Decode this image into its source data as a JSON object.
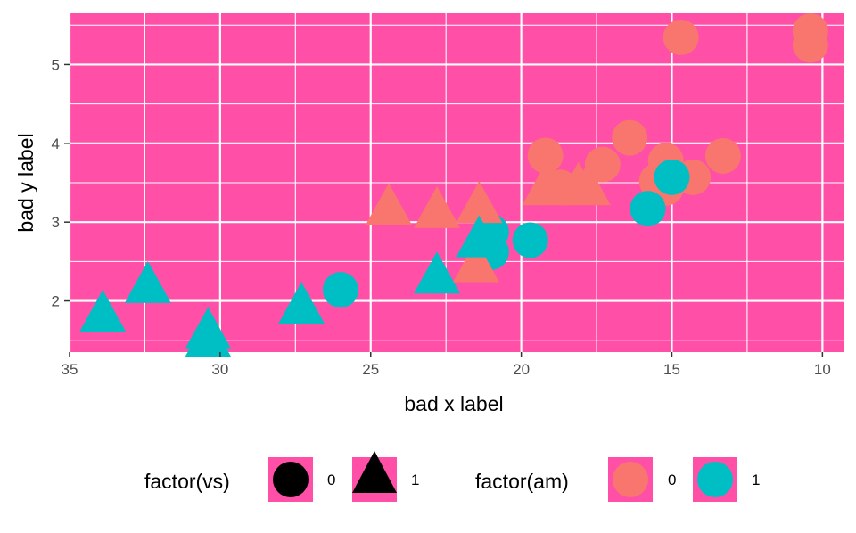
{
  "chart_data": {
    "type": "scatter",
    "xlabel": "bad x label",
    "ylabel": "bad y label",
    "x_reversed": true,
    "xlim": [
      35,
      9.3
    ],
    "ylim": [
      1.35,
      5.65
    ],
    "x_ticks": [
      35,
      30,
      25,
      20,
      15,
      10
    ],
    "y_ticks": [
      2,
      3,
      4,
      5
    ],
    "grid": true,
    "panel_background": "#FF4FA7",
    "legend_position": "bottom",
    "legends": [
      {
        "title": "factor(vs)",
        "entries": [
          {
            "label": "0",
            "shape": "circle"
          },
          {
            "label": "1",
            "shape": "triangle"
          }
        ]
      },
      {
        "title": "factor(am)",
        "entries": [
          {
            "label": "0",
            "color": "#F8766D"
          },
          {
            "label": "1",
            "color": "#00BFC4"
          }
        ]
      }
    ],
    "colors": {
      "am0": "#F8766D",
      "am1": "#00BFC4"
    },
    "points": [
      {
        "x": 21.0,
        "y": 2.62,
        "vs": "0",
        "am": "1"
      },
      {
        "x": 21.0,
        "y": 2.875,
        "vs": "0",
        "am": "1"
      },
      {
        "x": 22.8,
        "y": 2.32,
        "vs": "1",
        "am": "1"
      },
      {
        "x": 21.4,
        "y": 3.215,
        "vs": "1",
        "am": "0"
      },
      {
        "x": 18.7,
        "y": 3.44,
        "vs": "0",
        "am": "0"
      },
      {
        "x": 18.1,
        "y": 3.46,
        "vs": "1",
        "am": "0"
      },
      {
        "x": 14.3,
        "y": 3.57,
        "vs": "0",
        "am": "0"
      },
      {
        "x": 24.4,
        "y": 3.19,
        "vs": "1",
        "am": "0"
      },
      {
        "x": 22.8,
        "y": 3.15,
        "vs": "1",
        "am": "0"
      },
      {
        "x": 19.2,
        "y": 3.44,
        "vs": "1",
        "am": "0"
      },
      {
        "x": 17.8,
        "y": 3.44,
        "vs": "1",
        "am": "0"
      },
      {
        "x": 16.4,
        "y": 4.07,
        "vs": "0",
        "am": "0"
      },
      {
        "x": 17.3,
        "y": 3.73,
        "vs": "0",
        "am": "0"
      },
      {
        "x": 15.2,
        "y": 3.78,
        "vs": "0",
        "am": "0"
      },
      {
        "x": 10.4,
        "y": 5.25,
        "vs": "0",
        "am": "0"
      },
      {
        "x": 10.4,
        "y": 5.424,
        "vs": "0",
        "am": "0"
      },
      {
        "x": 14.7,
        "y": 5.345,
        "vs": "0",
        "am": "0"
      },
      {
        "x": 32.4,
        "y": 2.2,
        "vs": "1",
        "am": "1"
      },
      {
        "x": 30.4,
        "y": 1.615,
        "vs": "1",
        "am": "1"
      },
      {
        "x": 33.9,
        "y": 1.835,
        "vs": "1",
        "am": "1"
      },
      {
        "x": 21.5,
        "y": 2.465,
        "vs": "1",
        "am": "0"
      },
      {
        "x": 15.5,
        "y": 3.52,
        "vs": "0",
        "am": "0"
      },
      {
        "x": 15.2,
        "y": 3.435,
        "vs": "0",
        "am": "0"
      },
      {
        "x": 13.3,
        "y": 3.84,
        "vs": "0",
        "am": "0"
      },
      {
        "x": 19.2,
        "y": 3.845,
        "vs": "0",
        "am": "0"
      },
      {
        "x": 27.3,
        "y": 1.935,
        "vs": "1",
        "am": "1"
      },
      {
        "x": 26.0,
        "y": 2.14,
        "vs": "0",
        "am": "1"
      },
      {
        "x": 30.4,
        "y": 1.513,
        "vs": "1",
        "am": "1"
      },
      {
        "x": 15.8,
        "y": 3.17,
        "vs": "0",
        "am": "1"
      },
      {
        "x": 19.7,
        "y": 2.77,
        "vs": "0",
        "am": "1"
      },
      {
        "x": 15.0,
        "y": 3.57,
        "vs": "0",
        "am": "1"
      },
      {
        "x": 21.4,
        "y": 2.78,
        "vs": "1",
        "am": "1"
      }
    ]
  }
}
